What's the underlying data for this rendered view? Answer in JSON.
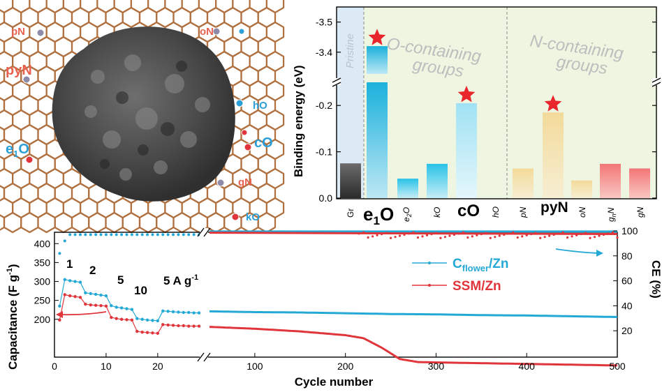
{
  "panel_a": {
    "labels": {
      "pN": "pN",
      "oN": "oN",
      "pyN": "pyN",
      "hO": "hO",
      "e1O_main": "e",
      "e1O_sub": "1",
      "e1O_end": "O",
      "cO": "cO",
      "gN": "gN",
      "kO": "kO"
    },
    "colors": {
      "nitrogen": "#e8624f",
      "oxygen": "#2a9fd8",
      "lattice": "#b0703f"
    }
  },
  "chart_data": [
    {
      "type": "bar",
      "title": "",
      "ylabel": "Binding energy (eV)",
      "xlabel": "",
      "categories": [
        "Gr",
        "e1O",
        "e2O",
        "kO",
        "cO",
        "hO",
        "pN",
        "pyN",
        "oN",
        "gnN",
        "gN"
      ],
      "tick_labels": {
        "Gr": "Gr",
        "e1O_main": "e",
        "e1O_sub": "1",
        "e1O_end": "O",
        "e2O_main": "e",
        "e2O_sub": "2",
        "e2O_end": "O",
        "kO": "kO",
        "cO": "cO",
        "hO": "hO",
        "pN": "pN",
        "pyN": "pyN",
        "oN": "oN",
        "gnN_main": "g",
        "gnN_sub": "n",
        "gnN_end": "N",
        "gN": "gN"
      },
      "values": [
        -0.075,
        -3.42,
        -0.042,
        -0.074,
        -0.205,
        0,
        -0.064,
        -0.185,
        -0.038,
        -0.074,
        -0.064
      ],
      "highlight_stars": [
        "e1O",
        "cO",
        "pyN"
      ],
      "y_axis_broken": true,
      "lower_segment": {
        "ylim": [
          0,
          -0.25
        ],
        "ticks": [
          "0.0",
          "-0.1",
          "-0.2"
        ]
      },
      "upper_segment": {
        "ylim": [
          -3.3,
          -3.55
        ],
        "ticks": [
          "-3.4",
          "-3.5"
        ]
      },
      "regions": {
        "pristine": "Pristine",
        "o_groups_line1": "O-containing",
        "o_groups_line2": "groups",
        "n_groups_line1": "N-containing",
        "n_groups_line2": "groups"
      },
      "colors": {
        "Gr": "#333333",
        "O": "#1fb3dc",
        "N_yellow": "#f2d890",
        "N_pink": "#f07070",
        "pristine_bg": "#dceaf6",
        "o_bg": "#eef6e2",
        "n_bg": "#eef6e2",
        "star": "#e8262c"
      }
    },
    {
      "type": "line",
      "title": "",
      "xlabel": "Cycle number",
      "ylabel_left": "Capacitance (F g",
      "ylabel_left_sup": "-1",
      "ylabel_left_end": ")",
      "ylabel_right": "CE (%)",
      "x_axis_broken": true,
      "x_segment_1": {
        "range": [
          0,
          28
        ],
        "ticks": [
          "0",
          "10",
          "20"
        ]
      },
      "x_segment_2": {
        "range": [
          50,
          500
        ],
        "ticks": [
          "100",
          "200",
          "300",
          "400",
          "500"
        ]
      },
      "ylim_left": [
        100,
        430
      ],
      "left_ticks": [
        "200",
        "250",
        "300",
        "350",
        "400"
      ],
      "ylim_right": [
        0,
        100
      ],
      "right_ticks": [
        "20",
        "40",
        "60",
        "80",
        "100"
      ],
      "rate_labels": {
        "r1": "1",
        "r2": "2",
        "r5": "5",
        "r10": "10",
        "r5b": "5 A g",
        "r5b_sup": "-1"
      },
      "legend": {
        "cflower_main": "C",
        "cflower_sub": "flower",
        "cflower_end": "/Zn",
        "ssm": "SSM/Zn"
      },
      "series": [
        {
          "name": "Cflower/Zn",
          "color": "#24a9d6",
          "rate_segment": [
            [
              1,
              235
            ],
            [
              2,
              305
            ],
            [
              3,
              302
            ],
            [
              4,
              300
            ],
            [
              5,
              298
            ],
            [
              6,
              270
            ],
            [
              7,
              268
            ],
            [
              8,
              266
            ],
            [
              9,
              264
            ],
            [
              10,
              262
            ],
            [
              11,
              236
            ],
            [
              12,
              232
            ],
            [
              13,
              230
            ],
            [
              14,
              228
            ],
            [
              15,
              226
            ],
            [
              16,
              202
            ],
            [
              17,
              200
            ],
            [
              18,
              198
            ],
            [
              19,
              197
            ],
            [
              20,
              196
            ],
            [
              21,
              222
            ],
            [
              22,
              221
            ],
            [
              23,
              220
            ],
            [
              24,
              219
            ],
            [
              25,
              218
            ],
            [
              26,
              218
            ],
            [
              27,
              217
            ],
            [
              28,
              217
            ]
          ],
          "long_cycle": [
            [
              50,
              221
            ],
            [
              100,
              219
            ],
            [
              150,
              218
            ],
            [
              200,
              216
            ],
            [
              250,
              214
            ],
            [
              300,
              213
            ],
            [
              350,
              211
            ],
            [
              400,
              210
            ],
            [
              450,
              208
            ],
            [
              500,
              206
            ]
          ],
          "ce": [
            [
              50,
              99.5
            ],
            [
              500,
              99.5
            ]
          ]
        },
        {
          "name": "SSM/Zn",
          "color": "#e0353b",
          "rate_segment": [
            [
              1,
              198
            ],
            [
              2,
              265
            ],
            [
              3,
              262
            ],
            [
              4,
              260
            ],
            [
              5,
              258
            ],
            [
              6,
              240
            ],
            [
              7,
              238
            ],
            [
              8,
              237
            ],
            [
              9,
              236
            ],
            [
              10,
              235
            ],
            [
              11,
              205
            ],
            [
              12,
              202
            ],
            [
              13,
              200
            ],
            [
              14,
              199
            ],
            [
              15,
              198
            ],
            [
              16,
              168
            ],
            [
              17,
              166
            ],
            [
              18,
              165
            ],
            [
              19,
              164
            ],
            [
              20,
              163
            ],
            [
              21,
              186
            ],
            [
              22,
              185
            ],
            [
              23,
              184
            ],
            [
              24,
              183
            ],
            [
              25,
              183
            ],
            [
              26,
              182
            ],
            [
              27,
              182
            ],
            [
              28,
              182
            ]
          ],
          "long_cycle": [
            [
              50,
              180
            ],
            [
              100,
              175
            ],
            [
              150,
              168
            ],
            [
              200,
              158
            ],
            [
              220,
              150
            ],
            [
              240,
              125
            ],
            [
              260,
              95
            ],
            [
              280,
              87
            ],
            [
              300,
              86
            ],
            [
              350,
              84
            ],
            [
              400,
              82
            ],
            [
              450,
              80
            ],
            [
              500,
              78
            ]
          ],
          "ce": [
            [
              50,
              98.5
            ],
            [
              500,
              97.5
            ]
          ]
        }
      ],
      "ce_rate_segment": [
        [
          1,
          82
        ],
        [
          2,
          90
        ],
        [
          3,
          96
        ],
        [
          28,
          97
        ]
      ]
    }
  ]
}
